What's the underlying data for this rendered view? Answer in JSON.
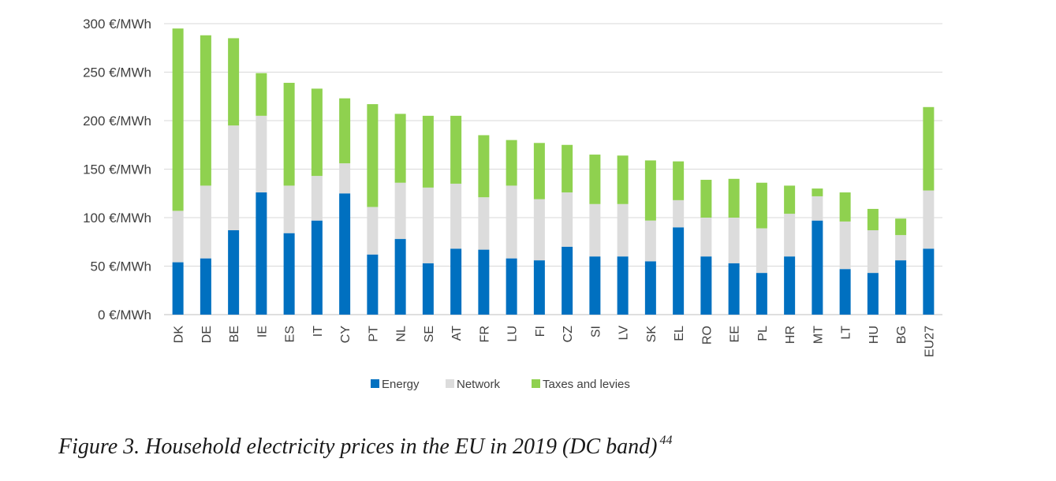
{
  "chart_data": {
    "type": "bar",
    "stacked": true,
    "categories": [
      "DK",
      "DE",
      "BE",
      "IE",
      "ES",
      "IT",
      "CY",
      "PT",
      "NL",
      "SE",
      "AT",
      "FR",
      "LU",
      "FI",
      "CZ",
      "SI",
      "LV",
      "SK",
      "EL",
      "RO",
      "EE",
      "PL",
      "HR",
      "MT",
      "LT",
      "HU",
      "BG",
      "EU27"
    ],
    "series": [
      {
        "name": "Energy",
        "color": "#0070c0",
        "values": [
          54,
          58,
          87,
          126,
          84,
          97,
          125,
          62,
          78,
          53,
          68,
          67,
          58,
          56,
          70,
          60,
          60,
          55,
          90,
          60,
          53,
          43,
          60,
          97,
          47,
          43,
          56,
          68
        ]
      },
      {
        "name": "Network",
        "color": "#dcdcdc",
        "values": [
          53,
          75,
          108,
          79,
          49,
          46,
          31,
          49,
          58,
          78,
          67,
          54,
          75,
          63,
          56,
          54,
          54,
          42,
          28,
          40,
          47,
          46,
          44,
          25,
          49,
          44,
          26,
          60
        ]
      },
      {
        "name": "Taxes and levies",
        "color": "#8fd14f",
        "values": [
          188,
          155,
          90,
          44,
          106,
          90,
          67,
          106,
          71,
          74,
          70,
          64,
          47,
          58,
          49,
          51,
          50,
          62,
          40,
          39,
          40,
          47,
          29,
          8,
          30,
          22,
          17,
          86
        ]
      }
    ],
    "ylim": [
      0,
      300
    ],
    "yticks": [
      "0 €/MWh",
      "50 €/MWh",
      "100 €/MWh",
      "150 €/MWh",
      "200 €/MWh",
      "250 €/MWh",
      "300 €/MWh"
    ],
    "grid": true,
    "legend_position": "bottom",
    "caption": "Figure 3. Household electricity prices in the EU in 2019 (DC band)",
    "caption_footnote": "44"
  }
}
